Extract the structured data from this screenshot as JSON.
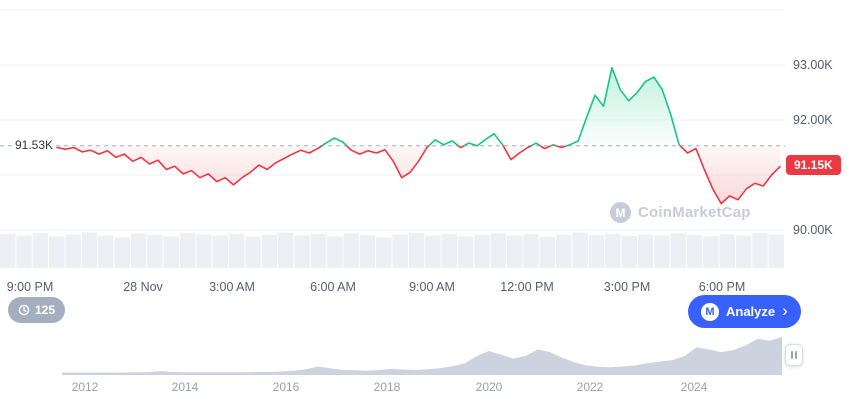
{
  "watermark": {
    "text": "CoinMarketCap"
  },
  "controls": {
    "indicator_badge": "125",
    "analyze_label": "Analyze"
  },
  "colors": {
    "up": "#16c784",
    "down": "#ea3943",
    "baseline": "#a6b0c3",
    "grid": "#f0f2f5",
    "volume_band": "#edeff4",
    "mini_fill": "#cdd3de",
    "price_badge_bg": "#ea3943",
    "analyze_bg": "#3861fb",
    "badge_bg": "#a5aebf",
    "watermark_color": "#c6ccd8",
    "axis_text": "#555d70"
  },
  "chart_data": [
    {
      "type": "line",
      "name": "price-24h",
      "ylim": [
        90.0,
        94.0
      ],
      "baseline_value": 91.53,
      "baseline_label": "91.53K",
      "last_value": 91.15,
      "last_label": "91.15K",
      "y_ticks": [
        {
          "value": 93.0,
          "label": "93.00K"
        },
        {
          "value": 92.0,
          "label": "92.00K"
        },
        {
          "value": 90.0,
          "label": "90.00K"
        }
      ],
      "x_tick_labels": [
        "9:00 PM",
        "28 Nov",
        "3:00 AM",
        "6:00 AM",
        "9:00 AM",
        "12:00 PM",
        "3:00 PM",
        "6:00 PM"
      ],
      "values": [
        91.5,
        91.47,
        91.5,
        91.42,
        91.45,
        91.38,
        91.44,
        91.32,
        91.38,
        91.25,
        91.32,
        91.2,
        91.27,
        91.1,
        91.16,
        91.02,
        91.08,
        90.95,
        91.02,
        90.88,
        90.95,
        90.82,
        90.95,
        91.05,
        91.18,
        91.1,
        91.22,
        91.3,
        91.38,
        91.45,
        91.4,
        91.48,
        91.58,
        91.67,
        91.6,
        91.45,
        91.38,
        91.44,
        91.4,
        91.46,
        91.25,
        90.95,
        91.05,
        91.25,
        91.5,
        91.64,
        91.55,
        91.62,
        91.5,
        91.58,
        91.53,
        91.65,
        91.75,
        91.55,
        91.28,
        91.4,
        91.5,
        91.58,
        91.48,
        91.55,
        91.5,
        91.55,
        91.62,
        92.05,
        92.45,
        92.25,
        92.95,
        92.55,
        92.35,
        92.5,
        92.7,
        92.78,
        92.55,
        92.1,
        91.55,
        91.4,
        91.48,
        91.1,
        90.75,
        90.48,
        90.62,
        90.55,
        90.75,
        90.85,
        90.8,
        91.0,
        91.15
      ],
      "volume_normalized": [
        0.95,
        0.9,
        0.97,
        0.88,
        0.93,
        0.99,
        0.9,
        0.85,
        0.96,
        0.92,
        0.88,
        0.97,
        0.93,
        0.9,
        0.95,
        0.87,
        0.92,
        0.98,
        0.9,
        0.94,
        0.88,
        0.96,
        0.91,
        0.85,
        0.93,
        0.97,
        0.9,
        0.95,
        0.88,
        0.92,
        0.96,
        0.9,
        0.94,
        0.87,
        0.93,
        0.98,
        0.91,
        0.95,
        0.89,
        0.93,
        0.9,
        0.96,
        0.92,
        0.88,
        0.94,
        0.9,
        0.97,
        0.93
      ]
    },
    {
      "type": "area",
      "name": "history-brush",
      "x_tick_labels": [
        "2012",
        "2014",
        "2016",
        "2018",
        "2020",
        "2022",
        "2024"
      ],
      "values_normalized": [
        0.01,
        0.01,
        0.01,
        0.01,
        0.01,
        0.01,
        0.02,
        0.02,
        0.05,
        0.03,
        0.02,
        0.02,
        0.02,
        0.02,
        0.02,
        0.02,
        0.03,
        0.03,
        0.04,
        0.06,
        0.1,
        0.17,
        0.12,
        0.08,
        0.07,
        0.06,
        0.08,
        0.11,
        0.09,
        0.08,
        0.1,
        0.13,
        0.18,
        0.25,
        0.45,
        0.58,
        0.48,
        0.38,
        0.45,
        0.62,
        0.55,
        0.4,
        0.28,
        0.2,
        0.16,
        0.15,
        0.17,
        0.2,
        0.26,
        0.3,
        0.34,
        0.44,
        0.68,
        0.62,
        0.55,
        0.6,
        0.72,
        0.9,
        0.85,
        0.95
      ]
    }
  ]
}
